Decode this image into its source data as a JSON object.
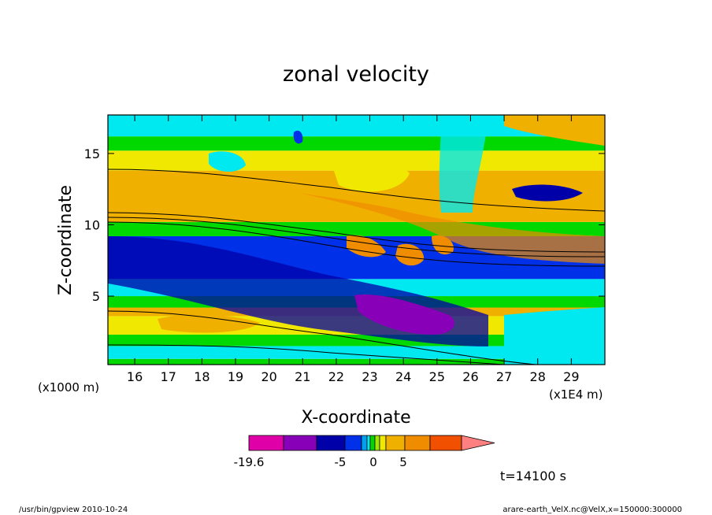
{
  "chart_data": {
    "type": "heatmap",
    "title": "zonal velocity",
    "xlabel": "X-coordinate",
    "ylabel": "Z-coordinate",
    "x_unit_left": "(x1000 m)",
    "x_unit_right": "(x1E4 m)",
    "xlim": [
      15.2,
      30.0
    ],
    "ylim": [
      0.2,
      17.7
    ],
    "x_ticks": [
      "16",
      "17",
      "18",
      "19",
      "20",
      "21",
      "22",
      "23",
      "24",
      "25",
      "26",
      "27",
      "28",
      "29"
    ],
    "x_tick_values": [
      16,
      17,
      18,
      19,
      20,
      21,
      22,
      23,
      24,
      25,
      26,
      27,
      28,
      29
    ],
    "y_ticks": [
      "5",
      "10",
      "15"
    ],
    "y_tick_values": [
      5,
      10,
      15
    ],
    "time_label": "t=14100 s",
    "colorbar": {
      "colors": [
        "#e000a8",
        "#8800b8",
        "#0000a8",
        "#0030e8",
        "#00a0f0",
        "#00e8f0",
        "#00d800",
        "#a0e800",
        "#f0e800",
        "#f0b000",
        "#f08c00",
        "#f05000",
        "#f00000",
        "#ff8080"
      ],
      "labels": [
        "-19.6",
        "-5",
        "0",
        "5"
      ]
    },
    "bands": [
      {
        "zmin": 0.2,
        "zmax": 0.6,
        "color": "#00d800"
      },
      {
        "zmin": 0.6,
        "zmax": 1.5,
        "color": "#00e8f0"
      },
      {
        "zmin": 1.5,
        "zmax": 2.3,
        "color": "#00d800"
      },
      {
        "zmin": 2.3,
        "zmax": 3.6,
        "color": "#f0e800"
      },
      {
        "zmin": 3.6,
        "zmax": 4.2,
        "color": "#f0b000"
      },
      {
        "zmin": 4.2,
        "zmax": 5.0,
        "color": "#00d800"
      },
      {
        "zmin": 5.0,
        "zmax": 6.2,
        "color": "#00e8f0"
      },
      {
        "zmin": 6.2,
        "zmax": 9.2,
        "color": "#0030e8"
      },
      {
        "zmin": 9.2,
        "zmax": 10.2,
        "color": "#00d800"
      },
      {
        "zmin": 10.2,
        "zmax": 13.8,
        "color": "#f0b000"
      },
      {
        "zmin": 13.8,
        "zmax": 15.2,
        "color": "#f0e800"
      },
      {
        "zmin": 15.2,
        "zmax": 16.2,
        "color": "#00d800"
      },
      {
        "zmin": 16.2,
        "zmax": 17.7,
        "color": "#00e8f0"
      }
    ]
  },
  "footer": {
    "left": "/usr/bin/gpview  2010-10-24",
    "right": "arare-earth_VelX.nc@VelX,x=150000:300000"
  }
}
